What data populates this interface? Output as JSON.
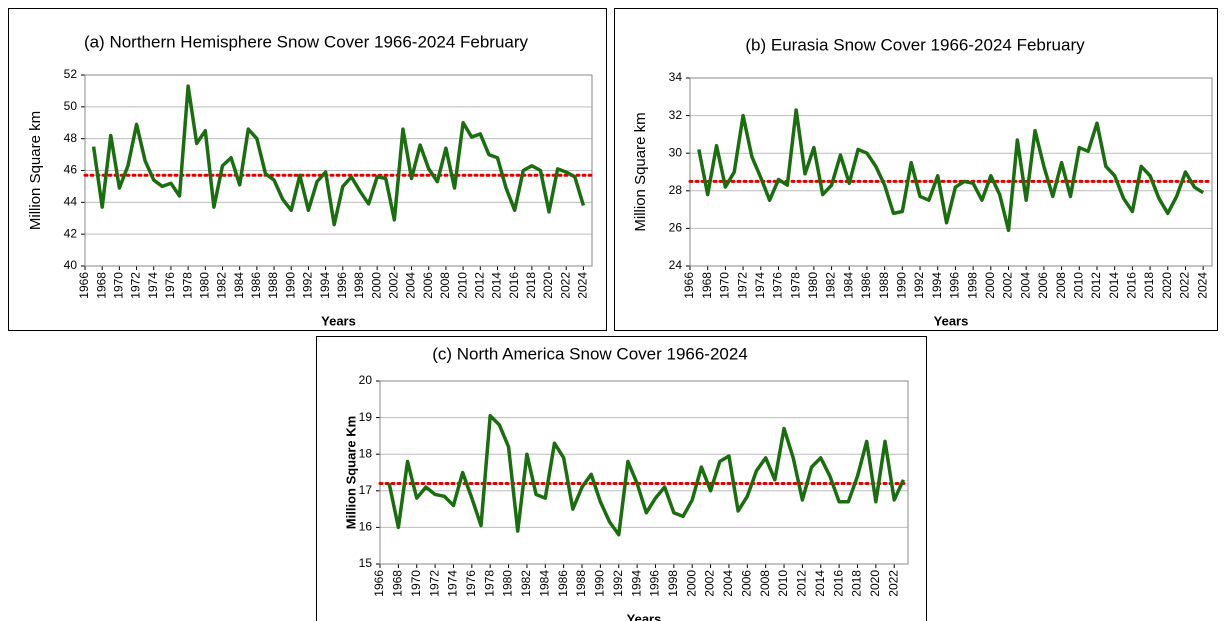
{
  "chart_data": [
    {
      "type": "line",
      "title": "(a) Northern Hemisphere Snow Cover 1966-2024 February",
      "xlabel": "Years",
      "ylabel": "Million Square km",
      "x": [
        1967,
        1968,
        1969,
        1970,
        1971,
        1972,
        1973,
        1974,
        1975,
        1976,
        1977,
        1978,
        1979,
        1980,
        1981,
        1982,
        1983,
        1984,
        1985,
        1986,
        1987,
        1988,
        1989,
        1990,
        1991,
        1992,
        1993,
        1994,
        1995,
        1996,
        1997,
        1998,
        1999,
        2000,
        2001,
        2002,
        2003,
        2004,
        2005,
        2006,
        2007,
        2008,
        2009,
        2010,
        2011,
        2012,
        2013,
        2014,
        2015,
        2016,
        2017,
        2018,
        2019,
        2020,
        2021,
        2022,
        2023,
        2024
      ],
      "values": [
        47.5,
        43.7,
        48.2,
        44.9,
        46.3,
        48.9,
        46.6,
        45.4,
        45.0,
        45.2,
        44.4,
        51.3,
        47.7,
        48.5,
        43.7,
        46.3,
        46.8,
        45.1,
        48.6,
        48.0,
        45.8,
        45.4,
        44.2,
        43.5,
        45.7,
        43.5,
        45.3,
        45.9,
        42.6,
        45.0,
        45.6,
        44.7,
        43.9,
        45.6,
        45.5,
        42.9,
        48.6,
        45.5,
        47.6,
        46.1,
        45.3,
        47.4,
        44.9,
        49.0,
        48.1,
        48.3,
        47.0,
        46.8,
        44.9,
        43.5,
        46.0,
        46.3,
        46.0,
        43.4,
        46.1,
        45.9,
        45.6,
        43.8
      ],
      "color": "#1a6e0f",
      "mean_line": {
        "value": 45.7,
        "color": "#e00000"
      },
      "xlim": [
        1966,
        2025
      ],
      "xticks": [
        1966,
        1968,
        1970,
        1972,
        1974,
        1976,
        1978,
        1980,
        1982,
        1984,
        1986,
        1988,
        1990,
        1992,
        1994,
        1996,
        1998,
        2000,
        2002,
        2004,
        2006,
        2008,
        2010,
        2012,
        2014,
        2016,
        2018,
        2020,
        2022,
        2024
      ],
      "ylim": [
        40,
        52
      ],
      "yticks": [
        40,
        42,
        44,
        46,
        48,
        50,
        52
      ],
      "grid": true
    },
    {
      "type": "line",
      "title": "(b) Eurasia Snow Cover 1966-2024 February",
      "xlabel": "Years",
      "ylabel": "Million Square km",
      "x": [
        1967,
        1968,
        1969,
        1970,
        1971,
        1972,
        1973,
        1974,
        1975,
        1976,
        1977,
        1978,
        1979,
        1980,
        1981,
        1982,
        1983,
        1984,
        1985,
        1986,
        1987,
        1988,
        1989,
        1990,
        1991,
        1992,
        1993,
        1994,
        1995,
        1996,
        1997,
        1998,
        1999,
        2000,
        2001,
        2002,
        2003,
        2004,
        2005,
        2006,
        2007,
        2008,
        2009,
        2010,
        2011,
        2012,
        2013,
        2014,
        2015,
        2016,
        2017,
        2018,
        2019,
        2020,
        2021,
        2022,
        2023,
        2024
      ],
      "values": [
        30.2,
        27.8,
        30.4,
        28.2,
        29.0,
        32.0,
        29.8,
        28.7,
        27.5,
        28.6,
        28.3,
        32.3,
        28.9,
        30.3,
        27.8,
        28.3,
        29.9,
        28.4,
        30.2,
        30.0,
        29.3,
        28.3,
        26.8,
        26.9,
        29.5,
        27.7,
        27.5,
        28.8,
        26.3,
        28.2,
        28.5,
        28.4,
        27.5,
        28.8,
        27.8,
        25.9,
        30.7,
        27.5,
        31.2,
        29.3,
        27.7,
        29.5,
        27.7,
        30.3,
        30.1,
        31.6,
        29.3,
        28.8,
        27.6,
        26.9,
        29.3,
        28.8,
        27.6,
        26.8,
        27.7,
        29.0,
        28.2,
        27.9
      ],
      "color": "#1a6e0f",
      "mean_line": {
        "value": 28.5,
        "color": "#e00000"
      },
      "xlim": [
        1966,
        2025
      ],
      "xticks": [
        1966,
        1968,
        1970,
        1972,
        1974,
        1976,
        1978,
        1980,
        1982,
        1984,
        1986,
        1988,
        1990,
        1992,
        1994,
        1996,
        1998,
        2000,
        2002,
        2004,
        2006,
        2008,
        2010,
        2012,
        2014,
        2016,
        2018,
        2020,
        2022,
        2024
      ],
      "ylim": [
        24,
        34
      ],
      "yticks": [
        24,
        26,
        28,
        30,
        32,
        34
      ],
      "grid": true
    },
    {
      "type": "line",
      "title": "(c) North America Snow Cover 1966-2024",
      "xlabel": "Years",
      "ylabel": "Million Square Km",
      "x": [
        1967,
        1968,
        1969,
        1970,
        1971,
        1972,
        1973,
        1974,
        1975,
        1976,
        1977,
        1978,
        1979,
        1980,
        1981,
        1982,
        1983,
        1984,
        1985,
        1986,
        1987,
        1988,
        1989,
        1990,
        1991,
        1992,
        1993,
        1994,
        1995,
        1996,
        1997,
        1998,
        1999,
        2000,
        2001,
        2002,
        2003,
        2004,
        2005,
        2006,
        2007,
        2008,
        2009,
        2010,
        2011,
        2012,
        2013,
        2014,
        2015,
        2016,
        2017,
        2018,
        2019,
        2020,
        2021,
        2022,
        2023
      ],
      "values": [
        17.2,
        16.0,
        17.8,
        16.8,
        17.1,
        16.9,
        16.85,
        16.6,
        17.5,
        16.8,
        16.05,
        19.05,
        18.8,
        18.2,
        15.9,
        18.0,
        16.9,
        16.8,
        18.3,
        17.9,
        16.5,
        17.1,
        17.45,
        16.7,
        16.15,
        15.8,
        17.8,
        17.2,
        16.4,
        16.8,
        17.1,
        16.4,
        16.3,
        16.75,
        17.65,
        17.0,
        17.8,
        17.95,
        16.45,
        16.85,
        17.55,
        17.9,
        17.3,
        18.7,
        17.9,
        16.75,
        17.65,
        17.9,
        17.4,
        16.7,
        16.7,
        17.4,
        18.35,
        16.7,
        18.35,
        16.75,
        17.3
      ],
      "color": "#1a6e0f",
      "mean_line": {
        "value": 17.2,
        "color": "#e00000"
      },
      "xlim": [
        1966,
        2023.5
      ],
      "xticks": [
        1966,
        1968,
        1970,
        1972,
        1974,
        1976,
        1978,
        1980,
        1982,
        1984,
        1986,
        1988,
        1990,
        1992,
        1994,
        1996,
        1998,
        2000,
        2002,
        2004,
        2006,
        2008,
        2010,
        2012,
        2014,
        2016,
        2018,
        2020,
        2022
      ],
      "ylim": [
        15,
        20
      ],
      "yticks": [
        15,
        16,
        17,
        18,
        19,
        20
      ],
      "grid": true
    }
  ]
}
